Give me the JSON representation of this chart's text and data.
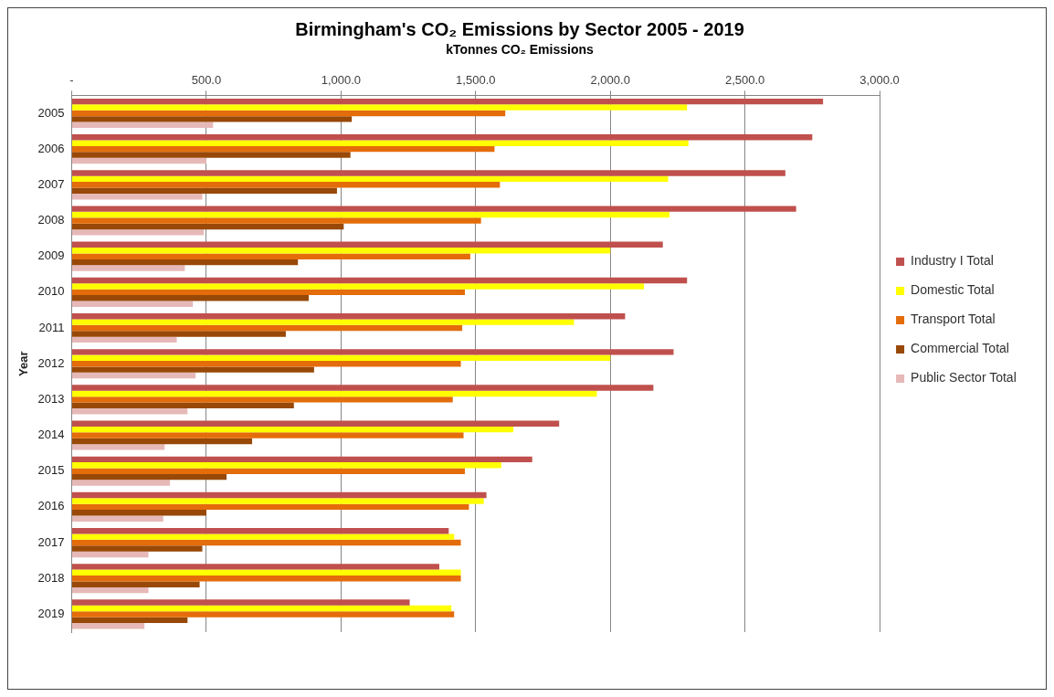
{
  "chart_data": {
    "type": "bar",
    "orientation": "horizontal",
    "title": "Birmingham's CO₂ Emissions by Sector 2005 - 2019",
    "subtitle": "kTonnes CO₂ Emissions",
    "ylabel": "Year",
    "categories": [
      "2005",
      "2006",
      "2007",
      "2008",
      "2009",
      "2010",
      "2011",
      "2012",
      "2013",
      "2014",
      "2015",
      "2016",
      "2017",
      "2018",
      "2019"
    ],
    "series": [
      {
        "name": "Industry I Total",
        "color": "#c0504d",
        "values": [
          2790,
          2750,
          2650,
          2690,
          2195,
          2285,
          2055,
          2235,
          2160,
          1810,
          1710,
          1540,
          1400,
          1365,
          1255
        ]
      },
      {
        "name": "Domestic Total",
        "color": "#ffff00",
        "values": [
          2285,
          2290,
          2215,
          2220,
          2000,
          2125,
          1865,
          2000,
          1950,
          1640,
          1595,
          1530,
          1420,
          1445,
          1410
        ]
      },
      {
        "name": "Transport Total",
        "color": "#e46c0a",
        "values": [
          1610,
          1570,
          1590,
          1520,
          1480,
          1460,
          1450,
          1445,
          1415,
          1455,
          1460,
          1475,
          1445,
          1445,
          1420
        ]
      },
      {
        "name": "Commercial Total",
        "color": "#984807",
        "values": [
          1040,
          1035,
          985,
          1010,
          840,
          880,
          795,
          900,
          825,
          670,
          575,
          500,
          485,
          475,
          430
        ]
      },
      {
        "name": "Public Sector Total",
        "color": "#e6b9b8",
        "values": [
          525,
          500,
          485,
          490,
          420,
          450,
          390,
          460,
          430,
          345,
          365,
          340,
          285,
          285,
          270
        ]
      }
    ],
    "xlim": [
      0,
      3000
    ],
    "xticks": [
      {
        "value": 0,
        "label": "-"
      },
      {
        "value": 500,
        "label": "500.0"
      },
      {
        "value": 1000,
        "label": "1,000.0"
      },
      {
        "value": 1500,
        "label": "1,500.0"
      },
      {
        "value": 2000,
        "label": "2,000.0"
      },
      {
        "value": 2500,
        "label": "2,500.0"
      },
      {
        "value": 3000,
        "label": "3,000.0"
      }
    ],
    "grid": "x",
    "legend": "right"
  }
}
